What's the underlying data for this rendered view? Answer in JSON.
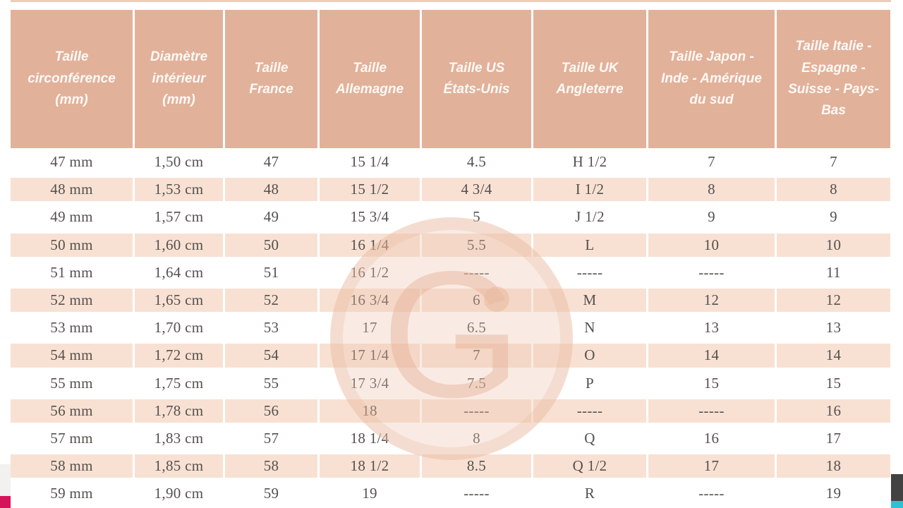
{
  "colors": {
    "header_bg": "#e2b19a",
    "shaded_row_bg": "#f8e1d3",
    "cell_text": "#55504d",
    "header_text": "#fdf9f6",
    "top_line": "#ebceba",
    "edge_pink": "#d6145a",
    "edge_gray": "#f2f1ef",
    "edge_dark": "#424242",
    "edge_cyan": "#2fc0d4",
    "watermark": "rgba(231,180,153,0.35)"
  },
  "watermark": {
    "letter": "G"
  },
  "table": {
    "columns": [
      "Taille circonférence (mm)",
      "Diamètre intérieur (mm)",
      "Taille France",
      "Taille Allemagne",
      "Taille US États-Unis",
      "Taille UK Angleterre",
      "Taille Japon - Inde - Amérique du sud",
      "Taille Italie - Espagne - Suisse - Pays-Bas"
    ],
    "rows": [
      [
        "47 mm",
        "1,50 cm",
        "47",
        "15 1/4",
        "4.5",
        "H 1/2",
        "7",
        "7"
      ],
      [
        "48 mm",
        "1,53 cm",
        "48",
        "15 1/2",
        "4 3/4",
        "I 1/2",
        "8",
        "8"
      ],
      [
        "49 mm",
        "1,57 cm",
        "49",
        "15 3/4",
        "5",
        "J 1/2",
        "9",
        "9"
      ],
      [
        "50 mm",
        "1,60 cm",
        "50",
        "16 1/4",
        "5.5",
        "L",
        "10",
        "10"
      ],
      [
        "51 mm",
        "1,64 cm",
        "51",
        "16 1/2",
        "-----",
        "-----",
        "-----",
        "11"
      ],
      [
        "52 mm",
        "1,65 cm",
        "52",
        "16 3/4",
        "6",
        "M",
        "12",
        "12"
      ],
      [
        "53 mm",
        "1,70 cm",
        "53",
        "17",
        "6.5",
        "N",
        "13",
        "13"
      ],
      [
        "54 mm",
        "1,72 cm",
        "54",
        "17 1/4",
        "7",
        "O",
        "14",
        "14"
      ],
      [
        "55 mm",
        "1,75 cm",
        "55",
        "17 3/4",
        "7.5",
        "P",
        "15",
        "15"
      ],
      [
        "56 mm",
        "1,78 cm",
        "56",
        "18",
        "-----",
        "-----",
        "-----",
        "16"
      ],
      [
        "57 mm",
        "1,83 cm",
        "57",
        "18 1/4",
        "8",
        "Q",
        "16",
        "17"
      ],
      [
        "58 mm",
        "1,85 cm",
        "58",
        "18 1/2",
        "8.5",
        "Q 1/2",
        "17",
        "18"
      ],
      [
        "59 mm",
        "1,90 cm",
        "59",
        "19",
        "-----",
        "R",
        "-----",
        "19"
      ]
    ]
  },
  "chart_data": {
    "type": "table",
    "title": "Tableau de correspondance des tailles de bagues",
    "columns": [
      "Taille circonférence (mm)",
      "Diamètre intérieur (mm)",
      "Taille France",
      "Taille Allemagne",
      "Taille US États-Unis",
      "Taille UK Angleterre",
      "Taille Japon - Inde - Amérique du sud",
      "Taille Italie - Espagne - Suisse - Pays-Bas"
    ],
    "rows": [
      [
        "47 mm",
        "1,50 cm",
        "47",
        "15 1/4",
        "4.5",
        "H 1/2",
        "7",
        "7"
      ],
      [
        "48 mm",
        "1,53 cm",
        "48",
        "15 1/2",
        "4 3/4",
        "I 1/2",
        "8",
        "8"
      ],
      [
        "49 mm",
        "1,57 cm",
        "49",
        "15 3/4",
        "5",
        "J 1/2",
        "9",
        "9"
      ],
      [
        "50 mm",
        "1,60 cm",
        "50",
        "16 1/4",
        "5.5",
        "L",
        "10",
        "10"
      ],
      [
        "51 mm",
        "1,64 cm",
        "51",
        "16 1/2",
        "-----",
        "-----",
        "-----",
        "11"
      ],
      [
        "52 mm",
        "1,65 cm",
        "52",
        "16 3/4",
        "6",
        "M",
        "12",
        "12"
      ],
      [
        "53 mm",
        "1,70 cm",
        "53",
        "17",
        "6.5",
        "N",
        "13",
        "13"
      ],
      [
        "54 mm",
        "1,72 cm",
        "54",
        "17 1/4",
        "7",
        "O",
        "14",
        "14"
      ],
      [
        "55 mm",
        "1,75 cm",
        "55",
        "17 3/4",
        "7.5",
        "P",
        "15",
        "15"
      ],
      [
        "56 mm",
        "1,78 cm",
        "56",
        "18",
        "-----",
        "-----",
        "-----",
        "16"
      ],
      [
        "57 mm",
        "1,83 cm",
        "57",
        "18 1/4",
        "8",
        "Q",
        "16",
        "17"
      ],
      [
        "58 mm",
        "1,85 cm",
        "58",
        "18 1/2",
        "8.5",
        "Q 1/2",
        "17",
        "18"
      ],
      [
        "59 mm",
        "1,90 cm",
        "59",
        "19",
        "-----",
        "R",
        "-----",
        "19"
      ]
    ]
  }
}
